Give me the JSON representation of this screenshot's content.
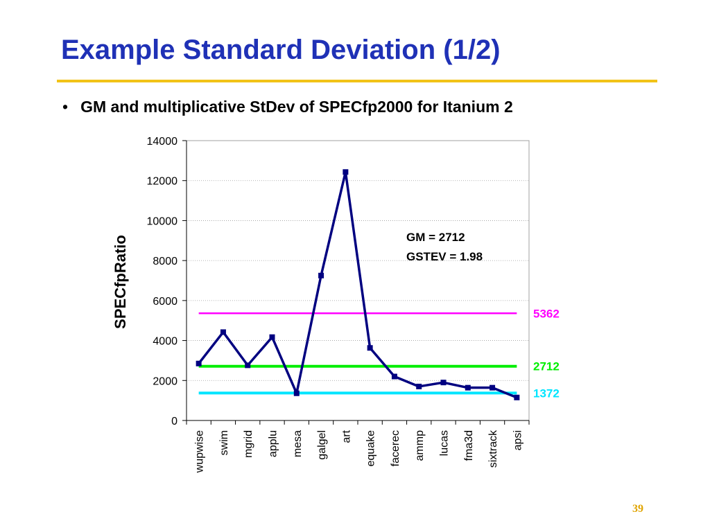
{
  "slide": {
    "title": "Example Standard Deviation (1/2)",
    "bullet_marker": "•",
    "bullet": "GM and multiplicative StDev of SPECfp2000 for Itanium 2",
    "page_number": "39"
  },
  "colors": {
    "title": "#1f31b6",
    "rule": "#f2c318",
    "series": "#000080",
    "upper": "#ff00ff",
    "mean": "#00ee00",
    "lower": "#00e5ff",
    "page_number": "#e0a400"
  },
  "chart_data": {
    "type": "line",
    "ylabel": "SPECfpRatio",
    "xlabel": "",
    "ylim": [
      0,
      14000
    ],
    "y_ticks": [
      "0",
      "2000",
      "4000",
      "6000",
      "8000",
      "10000",
      "12000",
      "14000"
    ],
    "y_tick_values": [
      0,
      2000,
      4000,
      6000,
      8000,
      10000,
      12000,
      14000
    ],
    "grid": "horizontal",
    "categories": [
      "wupwise",
      "swim",
      "mgrid",
      "applu",
      "mesa",
      "galgel",
      "art",
      "equake",
      "facerec",
      "ammp",
      "lucas",
      "fma3d",
      "sixtrack",
      "apsi"
    ],
    "series": [
      {
        "values": [
          2850,
          4420,
          2760,
          4170,
          1360,
          7250,
          12430,
          3630,
          2200,
          1700,
          1900,
          1640,
          1640,
          1150
        ]
      }
    ],
    "reference_lines": [
      {
        "value": 5362,
        "label": "5362",
        "color": "#ff00ff"
      },
      {
        "value": 2712,
        "label": "2712",
        "color": "#00ee00"
      },
      {
        "value": 1372,
        "label": "1372",
        "color": "#00e5ff"
      }
    ],
    "annotations": [
      "GM = 2712",
      "GSTEV = 1.98"
    ]
  }
}
